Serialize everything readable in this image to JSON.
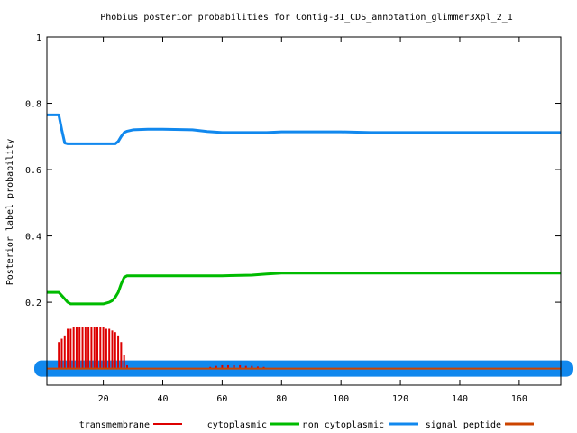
{
  "chart_data": {
    "type": "line",
    "title": "Phobius posterior probabilities for Contig-31_CDS_annotation_glimmer3Xpl_2_1",
    "xlabel": "",
    "ylabel": "Posterior label probability",
    "xlim": [
      1,
      174
    ],
    "ylim": [
      -0.05,
      1
    ],
    "x_ticks": [
      20,
      40,
      60,
      80,
      100,
      120,
      140,
      160
    ],
    "y_ticks": [
      0.2,
      0.4,
      0.6,
      0.8,
      1
    ],
    "y_tick_labels": [
      "0.2",
      "0.4",
      "0.6",
      "0.8",
      "1"
    ],
    "x_tick_labels": [
      "20",
      "40",
      "60",
      "80",
      "100",
      "120",
      "140",
      "160"
    ],
    "grid": false,
    "legend_placement": "bottom",
    "series": [
      {
        "name": "transmembrane",
        "color": "#dd0000",
        "style": "impulses",
        "x": [
          5,
          6,
          7,
          8,
          9,
          10,
          11,
          12,
          13,
          14,
          15,
          16,
          17,
          18,
          19,
          20,
          21,
          22,
          23,
          24,
          25,
          26,
          27,
          28,
          56,
          58,
          60,
          62,
          64,
          66,
          68,
          70,
          72,
          74
        ],
        "y": [
          0.08,
          0.09,
          0.1,
          0.12,
          0.12,
          0.125,
          0.125,
          0.125,
          0.125,
          0.125,
          0.125,
          0.125,
          0.125,
          0.125,
          0.125,
          0.125,
          0.12,
          0.12,
          0.115,
          0.11,
          0.1,
          0.08,
          0.04,
          0.01,
          0.005,
          0.008,
          0.01,
          0.01,
          0.01,
          0.01,
          0.008,
          0.008,
          0.006,
          0.005
        ]
      },
      {
        "name": "cytoplasmic",
        "color": "#00bb00",
        "style": "line",
        "x": [
          1,
          5,
          6,
          7,
          8,
          9,
          10,
          12,
          14,
          16,
          18,
          20,
          22,
          23,
          24,
          25,
          26,
          27,
          28,
          40,
          60,
          70,
          75,
          80,
          100,
          120,
          140,
          160,
          174
        ],
        "y": [
          0.23,
          0.23,
          0.22,
          0.21,
          0.2,
          0.195,
          0.195,
          0.195,
          0.195,
          0.195,
          0.195,
          0.195,
          0.2,
          0.205,
          0.215,
          0.23,
          0.255,
          0.275,
          0.28,
          0.28,
          0.28,
          0.282,
          0.285,
          0.288,
          0.288,
          0.288,
          0.288,
          0.288,
          0.288
        ]
      },
      {
        "name": "non cytoplasmic",
        "color": "#1188ee",
        "style": "line",
        "x": [
          1,
          5,
          6,
          7,
          8,
          10,
          15,
          20,
          22,
          24,
          25,
          26,
          27,
          28,
          30,
          35,
          40,
          50,
          55,
          60,
          70,
          75,
          80,
          100,
          110,
          120,
          140,
          160,
          174
        ],
        "y": [
          0.765,
          0.765,
          0.72,
          0.68,
          0.678,
          0.678,
          0.678,
          0.678,
          0.678,
          0.678,
          0.685,
          0.7,
          0.712,
          0.716,
          0.72,
          0.722,
          0.722,
          0.72,
          0.715,
          0.712,
          0.712,
          0.712,
          0.714,
          0.714,
          0.712,
          0.712,
          0.712,
          0.712,
          0.712
        ]
      },
      {
        "name": "signal peptide",
        "color": "#cc4400",
        "style": "line",
        "x": [
          1,
          174
        ],
        "y": [
          0.0,
          0.0
        ]
      }
    ],
    "band_color": "#1188ee"
  }
}
